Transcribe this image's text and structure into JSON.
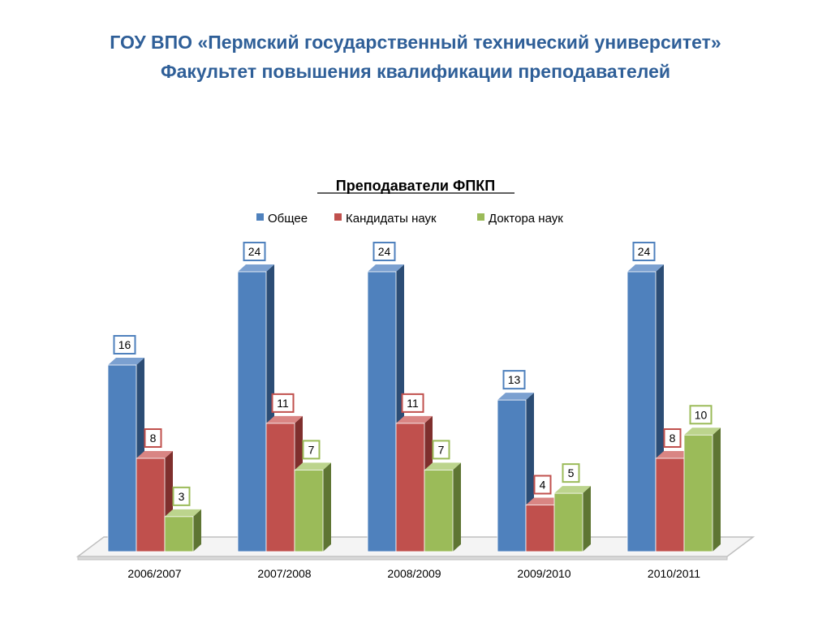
{
  "header": {
    "line1": "ГОУ ВПО «Пермский государственный технический университет»",
    "line2": "Факультет повышения квалификации преподавателей"
  },
  "chart_data": {
    "type": "bar",
    "title": "Преподаватели ФПКП",
    "categories": [
      "2006/2007",
      "2007/2008",
      "2008/2009",
      "2009/2010",
      "2010/2011"
    ],
    "series": [
      {
        "name": "Общее",
        "values": [
          16,
          24,
          24,
          13,
          24
        ],
        "color": "#4f81bd",
        "side": "#2c4d75",
        "top": "#7ba0d0"
      },
      {
        "name": "Кандидаты наук",
        "values": [
          8,
          11,
          11,
          4,
          8
        ],
        "color": "#c0504d",
        "side": "#7f2f2d",
        "top": "#d98583"
      },
      {
        "name": "Доктора наук",
        "values": [
          3,
          7,
          7,
          5,
          10
        ],
        "color": "#9bbb59",
        "side": "#5e7533",
        "top": "#bcd48d"
      }
    ],
    "ylim": [
      0,
      24
    ],
    "legend_position": "top",
    "data_labels": true,
    "grid": false
  }
}
